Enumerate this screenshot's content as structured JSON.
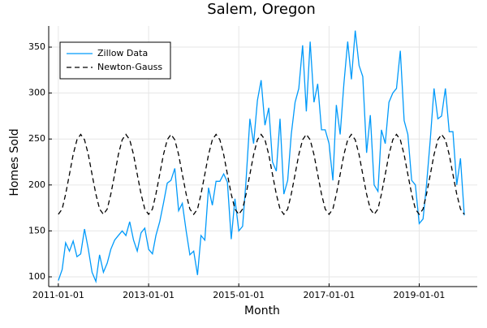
{
  "chart_data": {
    "type": "line",
    "title": "Salem, Oregon",
    "xlabel": "Month",
    "ylabel": "Homes Sold",
    "x": [
      "2011-01-01",
      "2011-02-01",
      "2011-03-01",
      "2011-04-01",
      "2011-05-01",
      "2011-06-01",
      "2011-07-01",
      "2011-08-01",
      "2011-09-01",
      "2011-10-01",
      "2011-11-01",
      "2011-12-01",
      "2012-01-01",
      "2012-02-01",
      "2012-03-01",
      "2012-04-01",
      "2012-05-01",
      "2012-06-01",
      "2012-07-01",
      "2012-08-01",
      "2012-09-01",
      "2012-10-01",
      "2012-11-01",
      "2012-12-01",
      "2013-01-01",
      "2013-02-01",
      "2013-03-01",
      "2013-04-01",
      "2013-05-01",
      "2013-06-01",
      "2013-07-01",
      "2013-08-01",
      "2013-09-01",
      "2013-10-01",
      "2013-11-01",
      "2013-12-01",
      "2014-01-01",
      "2014-02-01",
      "2014-03-01",
      "2014-04-01",
      "2014-05-01",
      "2014-06-01",
      "2014-07-01",
      "2014-08-01",
      "2014-09-01",
      "2014-10-01",
      "2014-11-01",
      "2014-12-01",
      "2015-01-01",
      "2015-02-01",
      "2015-03-01",
      "2015-04-01",
      "2015-05-01",
      "2015-06-01",
      "2015-07-01",
      "2015-08-01",
      "2015-09-01",
      "2015-10-01",
      "2015-11-01",
      "2015-12-01",
      "2016-01-01",
      "2016-02-01",
      "2016-03-01",
      "2016-04-01",
      "2016-05-01",
      "2016-06-01",
      "2016-07-01",
      "2016-08-01",
      "2016-09-01",
      "2016-10-01",
      "2016-11-01",
      "2016-12-01",
      "2017-01-01",
      "2017-02-01",
      "2017-03-01",
      "2017-04-01",
      "2017-05-01",
      "2017-06-01",
      "2017-07-01",
      "2017-08-01",
      "2017-09-01",
      "2017-10-01",
      "2017-11-01",
      "2017-12-01",
      "2018-01-01",
      "2018-02-01",
      "2018-03-01",
      "2018-04-01",
      "2018-05-01",
      "2018-06-01",
      "2018-07-01",
      "2018-08-01",
      "2018-09-01",
      "2018-10-01",
      "2018-11-01",
      "2018-12-01",
      "2019-01-01",
      "2019-02-01",
      "2019-03-01",
      "2019-04-01",
      "2019-05-01",
      "2019-06-01",
      "2019-07-01",
      "2019-08-01",
      "2019-09-01",
      "2019-10-01",
      "2019-11-01",
      "2019-12-01",
      "2020-01-01"
    ],
    "series": [
      {
        "name": "Zillow Data",
        "color": "#009afa",
        "style": "solid",
        "values": [
          96,
          108,
          137,
          128,
          139,
          122,
          125,
          152,
          130,
          105,
          95,
          124,
          105,
          115,
          130,
          140,
          145,
          150,
          145,
          160,
          140,
          128,
          148,
          153,
          130,
          125,
          145,
          160,
          180,
          202,
          205,
          218,
          172,
          180,
          150,
          124,
          128,
          102,
          145,
          140,
          197,
          178,
          204,
          204,
          212,
          203,
          141,
          185,
          150,
          155,
          205,
          272,
          245,
          292,
          314,
          265,
          284,
          225,
          215,
          272,
          190,
          205,
          255,
          290,
          305,
          352,
          280,
          356,
          290,
          310,
          260,
          260,
          245,
          205,
          287,
          255,
          310,
          356,
          315,
          368,
          330,
          318,
          235,
          276,
          200,
          193,
          260,
          245,
          290,
          300,
          305,
          346,
          270,
          255,
          205,
          200,
          158,
          163,
          200,
          250,
          305,
          272,
          275,
          305,
          258,
          258,
          200,
          229,
          167
        ]
      },
      {
        "name": "Newton-Gauss",
        "color": "#000000",
        "style": "dashed",
        "values": [
          168,
          173.8,
          190,
          211.5,
          233,
          249.2,
          255,
          249.2,
          233,
          211.5,
          190,
          173.8,
          168,
          173.8,
          190,
          211.5,
          233,
          249.2,
          255,
          249.2,
          233,
          211.5,
          190,
          173.8,
          168,
          173.8,
          190,
          211.5,
          233,
          249.2,
          255,
          249.2,
          233,
          211.5,
          190,
          173.8,
          168,
          173.8,
          190,
          211.5,
          233,
          249.2,
          255,
          249.2,
          233,
          211.5,
          190,
          173.8,
          168,
          173.8,
          190,
          211.5,
          233,
          249.2,
          255,
          249.2,
          233,
          211.5,
          190,
          173.8,
          168,
          173.8,
          190,
          211.5,
          233,
          249.2,
          255,
          249.2,
          233,
          211.5,
          190,
          173.8,
          168,
          173.8,
          190,
          211.5,
          233,
          249.2,
          255,
          249.2,
          233,
          211.5,
          190,
          173.8,
          168,
          173.8,
          190,
          211.5,
          233,
          249.2,
          255,
          249.2,
          233,
          211.5,
          190,
          173.8,
          168,
          173.8,
          190,
          211.5,
          233,
          249.2,
          255,
          249.2,
          233,
          211.5,
          190,
          173.8,
          168
        ]
      }
    ],
    "xlim": [
      "2010-10-15",
      "2020-04-15"
    ],
    "xticks": [
      "2011-01-01",
      "2013-01-01",
      "2015-01-01",
      "2017-01-01",
      "2019-01-01"
    ],
    "ylim": [
      89.4,
      373
    ],
    "yticks": [
      100,
      150,
      200,
      250,
      300,
      350
    ],
    "grid": true,
    "legend": "top-left"
  }
}
